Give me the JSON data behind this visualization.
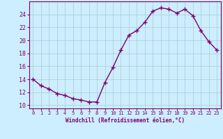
{
  "x": [
    0,
    1,
    2,
    3,
    4,
    5,
    6,
    7,
    8,
    9,
    10,
    11,
    12,
    13,
    14,
    15,
    16,
    17,
    18,
    19,
    20,
    21,
    22,
    23
  ],
  "y": [
    14.0,
    13.0,
    12.5,
    11.8,
    11.5,
    11.0,
    10.8,
    10.5,
    10.5,
    13.5,
    15.8,
    18.5,
    20.8,
    21.5,
    22.8,
    24.5,
    25.0,
    24.8,
    24.2,
    24.8,
    23.8,
    21.5,
    19.8,
    18.5
  ],
  "line_color": "#7b0070",
  "marker": "+",
  "marker_size": 4,
  "line_width": 1.0,
  "bg_color": "#cceeff",
  "grid_color": "#aacccc",
  "xlabel": "Windchill (Refroidissement éolien,°C)",
  "xlabel_color": "#7b0070",
  "tick_color": "#7b0070",
  "ylim": [
    9.5,
    26
  ],
  "yticks": [
    10,
    12,
    14,
    16,
    18,
    20,
    22,
    24
  ],
  "xticks": [
    0,
    1,
    2,
    3,
    4,
    5,
    6,
    7,
    8,
    9,
    10,
    11,
    12,
    13,
    14,
    15,
    16,
    17,
    18,
    19,
    20,
    21,
    22,
    23
  ],
  "spine_color": "#7b0070"
}
